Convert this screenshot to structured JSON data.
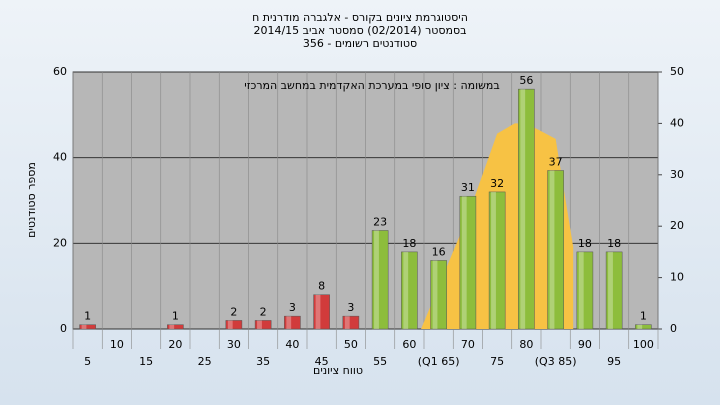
{
  "chart_data": {
    "type": "bar",
    "title_lines": [
      "היסטוגרמת ציונים בקורס - אלגברה מודרנית ח",
      "בסמסטר (02/2014) סמסטר אביב 2014/15",
      "סטודנטים רשומים - 356"
    ],
    "annotation": "במשומה : ציון סופי במערכת האקדמית במחשב המרכזי",
    "x_label": "טווח ציונים",
    "y_label": "מספר סטודנטים",
    "categories": [
      "5",
      "10",
      "15",
      "20",
      "25",
      "30",
      "35",
      "40",
      "45",
      "50",
      "55",
      "60",
      "(Q1 65)",
      "70",
      "75",
      "80",
      "(Q3 85)",
      "90",
      "95",
      "100"
    ],
    "values": [
      1,
      0,
      0,
      1,
      0,
      2,
      2,
      3,
      8,
      3,
      23,
      18,
      16,
      31,
      32,
      56,
      37,
      18,
      18,
      1
    ],
    "colors": [
      "#d13b3b",
      "#d13b3b",
      "#d13b3b",
      "#d13b3b",
      "#d13b3b",
      "#d13b3b",
      "#d13b3b",
      "#d13b3b",
      "#d13b3b",
      "#d13b3b",
      "#8dbd3c",
      "#8dbd3c",
      "#8dbd3c",
      "#8dbd3c",
      "#8dbd3c",
      "#8dbd3c",
      "#8dbd3c",
      "#8dbd3c",
      "#8dbd3c",
      "#8dbd3c"
    ],
    "ylim": [
      0,
      60
    ],
    "yticks": [
      0,
      20,
      40,
      60
    ],
    "y2lim": [
      0,
      50
    ],
    "y2ticks": [
      0,
      10,
      20,
      30,
      40,
      50
    ],
    "area": {
      "type": "area",
      "axis": "y2",
      "color": "#f7c244",
      "x": [
        62,
        70,
        75,
        78,
        80,
        85,
        88
      ],
      "values": [
        0,
        22,
        38,
        40,
        40,
        37,
        16
      ]
    },
    "grid": true
  }
}
